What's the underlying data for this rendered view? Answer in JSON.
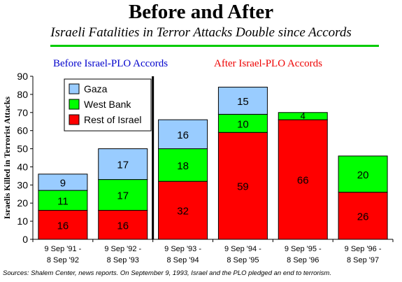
{
  "header": {
    "title": "Before and After",
    "subtitle": "Israeli Fatalities in Terror Attacks Double since Accords"
  },
  "sections": {
    "before": "Before Israel-PLO Accords",
    "after": "After Israel-PLO Accords"
  },
  "footer": {
    "sources": "Sources: Shalem Center, news reports.  On September 9, 1993, Israel and the PLO pledged an end to terrorism."
  },
  "colors": {
    "gaza": "#99ccff",
    "west_bank": "#00ff00",
    "rest_of_israel": "#ff0000"
  },
  "chart_data": {
    "type": "bar",
    "stacked": true,
    "ylabel": "Israelis Killed in Terrorist Attacks",
    "ylim": [
      0,
      90
    ],
    "yticks": [
      0,
      10,
      20,
      30,
      40,
      50,
      60,
      70,
      80,
      90
    ],
    "categories": [
      [
        "9 Sep '91 -",
        "8 Sep '92"
      ],
      [
        "9 Sep '92 -",
        "8 Sep '93"
      ],
      [
        "9 Sep '93 -",
        "8 Sep '94"
      ],
      [
        "9 Sep '94 -",
        "8 Sep '95"
      ],
      [
        "9 Sep '95 -",
        "8 Sep '96"
      ],
      [
        "9 Sep '96 -",
        "8 Sep '97"
      ]
    ],
    "series": [
      {
        "name": "Rest of Israel",
        "color": "#ff0000",
        "values": [
          16,
          16,
          32,
          59,
          66,
          26
        ]
      },
      {
        "name": "West Bank",
        "color": "#00ff00",
        "values": [
          11,
          17,
          18,
          10,
          4,
          20
        ]
      },
      {
        "name": "Gaza",
        "color": "#99ccff",
        "values": [
          9,
          17,
          16,
          15,
          0,
          0
        ]
      }
    ],
    "legend_order": [
      "Gaza",
      "West Bank",
      "Rest of Israel"
    ],
    "legend_position": "top-left",
    "divider_after_category": 1,
    "grid": false
  }
}
